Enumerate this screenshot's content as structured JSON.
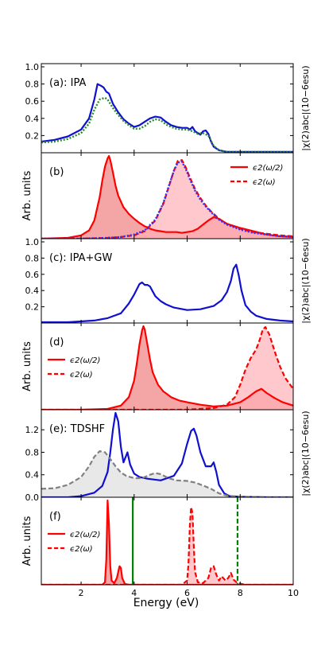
{
  "chart_data": {
    "type": "line",
    "xlabel": "Energy (eV)",
    "xlim": [
      0.5,
      10
    ],
    "xticks": [
      2,
      4,
      6,
      8,
      10
    ],
    "panels": [
      {
        "label": "(a): IPA",
        "ylabel_right": "|χ(2)abc|(10−6esu)",
        "ylim": [
          0,
          1.0
        ],
        "yticks": [
          0.2,
          0.4,
          0.6,
          0.8,
          1.0
        ],
        "series": [
          {
            "style": "solid",
            "color": "#1010d0",
            "fill": false,
            "x": [
              0.5,
              1.0,
              1.5,
              2.0,
              2.3,
              2.5,
              2.62,
              2.75,
              2.85,
              2.95,
              3.05,
              3.2,
              3.4,
              3.6,
              3.8,
              4.0,
              4.2,
              4.4,
              4.6,
              4.8,
              5.0,
              5.2,
              5.4,
              5.6,
              5.8,
              6.0,
              6.1,
              6.2,
              6.3,
              6.4,
              6.5,
              6.6,
              6.7,
              6.8,
              6.9,
              7.0,
              7.2,
              7.5,
              8.0,
              9.0,
              10.0
            ],
            "y": [
              0.13,
              0.15,
              0.19,
              0.27,
              0.4,
              0.62,
              0.8,
              0.78,
              0.76,
              0.71,
              0.69,
              0.57,
              0.47,
              0.39,
              0.34,
              0.3,
              0.32,
              0.36,
              0.4,
              0.42,
              0.41,
              0.36,
              0.32,
              0.3,
              0.29,
              0.29,
              0.27,
              0.3,
              0.25,
              0.23,
              0.21,
              0.25,
              0.26,
              0.22,
              0.13,
              0.07,
              0.03,
              0.01,
              0.01,
              0.01,
              0.01
            ]
          },
          {
            "style": "dotted",
            "color": "#2a8a2a",
            "fill": false,
            "x": [
              0.5,
              1.0,
              1.5,
              2.0,
              2.3,
              2.5,
              2.7,
              2.9,
              3.0,
              3.2,
              3.4,
              3.6,
              3.8,
              4.0,
              4.2,
              4.4,
              4.6,
              4.8,
              5.0,
              5.2,
              5.4,
              5.6,
              5.8,
              6.0,
              6.2,
              6.4,
              6.6,
              6.8,
              7.0,
              7.2,
              7.5,
              8.0,
              9.0,
              10.0
            ],
            "y": [
              0.12,
              0.13,
              0.16,
              0.23,
              0.34,
              0.5,
              0.62,
              0.64,
              0.62,
              0.52,
              0.44,
              0.37,
              0.32,
              0.28,
              0.28,
              0.31,
              0.36,
              0.39,
              0.38,
              0.33,
              0.3,
              0.28,
              0.27,
              0.27,
              0.25,
              0.22,
              0.23,
              0.2,
              0.08,
              0.03,
              0.01,
              0.01,
              0.01,
              0.01
            ]
          }
        ]
      },
      {
        "label": "(b)",
        "ylabel_left": "Arb. units",
        "ylim": [
          0,
          1.0
        ],
        "legend": [
          {
            "label": "ϵ2(ω/2)",
            "style": "solid"
          },
          {
            "label": "ϵ2(ω)",
            "style": "dashed"
          }
        ],
        "series": [
          {
            "style": "solid",
            "color": "#ff0000",
            "fill": true,
            "fill_color": "#f08080",
            "fill_opacity": 0.7,
            "x": [
              0.5,
              1.5,
              2.0,
              2.3,
              2.5,
              2.7,
              2.8,
              2.9,
              3.0,
              3.05,
              3.1,
              3.2,
              3.3,
              3.4,
              3.6,
              3.8,
              4.0,
              4.2,
              4.4,
              4.6,
              4.8,
              5.0,
              5.2,
              5.4,
              5.6,
              5.8,
              6.0,
              6.2,
              6.4,
              6.6,
              6.8,
              7.0,
              7.2,
              7.5,
              8.0,
              8.5,
              9.0,
              9.5,
              10.0
            ],
            "y": [
              0.0,
              0.01,
              0.04,
              0.1,
              0.22,
              0.5,
              0.7,
              0.87,
              0.97,
              1.0,
              0.95,
              0.8,
              0.64,
              0.52,
              0.38,
              0.3,
              0.24,
              0.19,
              0.15,
              0.12,
              0.1,
              0.09,
              0.08,
              0.08,
              0.08,
              0.07,
              0.08,
              0.09,
              0.12,
              0.17,
              0.22,
              0.26,
              0.24,
              0.18,
              0.13,
              0.09,
              0.05,
              0.03,
              0.02
            ]
          },
          {
            "style": "dashed",
            "color": "#ff0000",
            "fill": true,
            "fill_color": "#ffb0b8",
            "fill_opacity": 0.7,
            "x": [
              0.5,
              2.0,
              3.0,
              3.5,
              4.0,
              4.4,
              4.8,
              5.1,
              5.3,
              5.5,
              5.65,
              5.8,
              5.95,
              6.1,
              6.3,
              6.5,
              6.7,
              6.9,
              7.2,
              7.5,
              8.0,
              8.5,
              9.0,
              9.5,
              10.0
            ],
            "y": [
              0.0,
              0.0,
              0.01,
              0.02,
              0.04,
              0.09,
              0.22,
              0.42,
              0.62,
              0.82,
              0.94,
              0.95,
              0.86,
              0.74,
              0.6,
              0.49,
              0.4,
              0.33,
              0.24,
              0.18,
              0.12,
              0.08,
              0.06,
              0.04,
              0.03
            ]
          },
          {
            "style": "dotted",
            "color": "#3030ff",
            "fill": false,
            "x": [
              0.5,
              2.0,
              3.0,
              3.5,
              4.0,
              4.4,
              4.8,
              5.1,
              5.3,
              5.5,
              5.65,
              5.8,
              5.95,
              6.1,
              6.3,
              6.5,
              6.7,
              6.9,
              7.2,
              7.5,
              8.0,
              8.5,
              9.0,
              9.5,
              10.0
            ],
            "y": [
              0.0,
              0.0,
              0.01,
              0.02,
              0.05,
              0.1,
              0.23,
              0.43,
              0.63,
              0.82,
              0.92,
              0.93,
              0.84,
              0.72,
              0.58,
              0.47,
              0.39,
              0.32,
              0.23,
              0.17,
              0.11,
              0.07,
              0.05,
              0.03,
              0.02
            ]
          }
        ]
      },
      {
        "label": "(c): IPA+GW",
        "ylabel_right": "|χ(2)abc|(10−6esu)",
        "ylim": [
          0,
          1.0
        ],
        "yticks": [
          0.2,
          0.4,
          0.6,
          0.8,
          1.0
        ],
        "series": [
          {
            "style": "solid",
            "color": "#1010d0",
            "fill": false,
            "x": [
              0.5,
              1.5,
              2.5,
              3.0,
              3.5,
              3.8,
              4.0,
              4.2,
              4.3,
              4.4,
              4.5,
              4.6,
              4.7,
              4.8,
              5.0,
              5.2,
              5.5,
              6.0,
              6.5,
              7.0,
              7.3,
              7.5,
              7.65,
              7.75,
              7.85,
              7.95,
              8.05,
              8.2,
              8.4,
              8.6,
              9.0,
              9.5,
              10.0
            ],
            "y": [
              0.01,
              0.01,
              0.03,
              0.06,
              0.12,
              0.24,
              0.35,
              0.48,
              0.5,
              0.47,
              0.47,
              0.45,
              0.39,
              0.33,
              0.27,
              0.23,
              0.19,
              0.16,
              0.17,
              0.21,
              0.28,
              0.38,
              0.52,
              0.67,
              0.72,
              0.58,
              0.4,
              0.22,
              0.14,
              0.09,
              0.05,
              0.03,
              0.02
            ]
          }
        ]
      },
      {
        "label": "(d)",
        "ylabel_left": "Arb. units",
        "ylim": [
          0,
          1.0
        ],
        "legend": [
          {
            "label": "ϵ2(ω/2)",
            "style": "solid"
          },
          {
            "label": "ϵ2(ω)",
            "style": "dashed"
          }
        ],
        "series": [
          {
            "style": "solid",
            "color": "#ff0000",
            "fill": true,
            "fill_color": "#f08080",
            "fill_opacity": 0.7,
            "x": [
              0.5,
              2.0,
              3.0,
              3.5,
              3.8,
              4.0,
              4.1,
              4.2,
              4.3,
              4.35,
              4.4,
              4.5,
              4.6,
              4.7,
              4.9,
              5.1,
              5.4,
              5.7,
              6.0,
              6.5,
              7.0,
              7.5,
              8.0,
              8.3,
              8.6,
              8.8,
              9.0,
              9.3,
              9.6,
              10.0
            ],
            "y": [
              0.0,
              0.0,
              0.01,
              0.05,
              0.15,
              0.35,
              0.55,
              0.78,
              0.95,
              1.0,
              0.96,
              0.78,
              0.6,
              0.45,
              0.3,
              0.22,
              0.15,
              0.11,
              0.09,
              0.06,
              0.04,
              0.05,
              0.09,
              0.15,
              0.22,
              0.25,
              0.2,
              0.14,
              0.09,
              0.05
            ]
          },
          {
            "style": "dashed",
            "color": "#ff0000",
            "fill": true,
            "fill_color": "#ffb0b8",
            "fill_opacity": 0.7,
            "x": [
              0.5,
              4.0,
              6.0,
              7.0,
              7.5,
              7.8,
              8.0,
              8.2,
              8.4,
              8.6,
              8.75,
              8.85,
              8.95,
              9.1,
              9.3,
              9.5,
              9.7,
              10.0
            ],
            "y": [
              0.0,
              0.0,
              0.0,
              0.02,
              0.06,
              0.15,
              0.3,
              0.48,
              0.62,
              0.72,
              0.85,
              0.96,
              0.99,
              0.9,
              0.7,
              0.52,
              0.38,
              0.25
            ]
          }
        ]
      },
      {
        "label": "(e): TDSHF",
        "ylabel_right": "|χ(2)abc|(10−6esu)",
        "ylim": [
          0,
          1.5
        ],
        "yticks": [
          0.0,
          0.4,
          0.8,
          1.2
        ],
        "series": [
          {
            "style": "solid",
            "color": "#1010d0",
            "fill": false,
            "x": [
              0.5,
              1.5,
              2.0,
              2.5,
              2.8,
              3.0,
              3.1,
              3.2,
              3.3,
              3.4,
              3.5,
              3.6,
              3.75,
              3.85,
              4.0,
              4.2,
              4.5,
              5.0,
              5.5,
              5.8,
              6.0,
              6.15,
              6.25,
              6.35,
              6.5,
              6.7,
              6.9,
              7.0,
              7.1,
              7.2,
              7.4,
              7.6,
              8.0,
              9.0,
              10.0
            ],
            "y": [
              0.0,
              0.0,
              0.02,
              0.08,
              0.2,
              0.45,
              0.8,
              1.2,
              1.5,
              1.35,
              0.9,
              0.62,
              0.8,
              0.58,
              0.42,
              0.36,
              0.33,
              0.3,
              0.38,
              0.6,
              0.95,
              1.18,
              1.22,
              1.1,
              0.8,
              0.55,
              0.55,
              0.62,
              0.45,
              0.22,
              0.07,
              0.02,
              0.01,
              0.0,
              0.0
            ]
          },
          {
            "style": "dashed",
            "color": "#808080",
            "fill": true,
            "fill_color": "#d8d8d8",
            "fill_opacity": 0.6,
            "x": [
              0.5,
              1.0,
              1.5,
              2.0,
              2.3,
              2.5,
              2.7,
              2.9,
              3.1,
              3.3,
              3.5,
              3.7,
              4.0,
              4.3,
              4.6,
              4.8,
              5.0,
              5.3,
              5.6,
              6.0,
              6.3,
              6.6,
              6.9,
              7.2,
              7.5,
              8.0,
              9.0,
              10.0
            ],
            "y": [
              0.15,
              0.16,
              0.22,
              0.36,
              0.55,
              0.72,
              0.82,
              0.8,
              0.68,
              0.55,
              0.44,
              0.38,
              0.34,
              0.34,
              0.4,
              0.43,
              0.41,
              0.34,
              0.3,
              0.29,
              0.26,
              0.21,
              0.15,
              0.07,
              0.03,
              0.01,
              0.0,
              0.0
            ]
          }
        ]
      },
      {
        "label": "(f)",
        "ylabel_left": "Arb. units",
        "ylim": [
          0,
          1.0
        ],
        "legend": [
          {
            "label": "ϵ2(ω/2)",
            "style": "solid"
          },
          {
            "label": "ϵ2(ω)",
            "style": "dashed"
          }
        ],
        "vlines": [
          {
            "x": 3.95,
            "style": "solid",
            "color": "#008000"
          },
          {
            "x": 7.9,
            "style": "dashed",
            "color": "#008000"
          }
        ],
        "series": [
          {
            "style": "solid",
            "color": "#ff0000",
            "fill": true,
            "fill_color": "#f08080",
            "fill_opacity": 0.7,
            "x": [
              0.5,
              2.8,
              2.9,
              2.95,
              3.0,
              3.05,
              3.1,
              3.15,
              3.25,
              3.35,
              3.45,
              3.5,
              3.55,
              3.65,
              3.8,
              4.5,
              5.5,
              6.5,
              7.5,
              10.0
            ],
            "y": [
              0.0,
              0.0,
              0.03,
              0.3,
              1.0,
              0.72,
              0.22,
              0.05,
              0.02,
              0.08,
              0.22,
              0.2,
              0.08,
              0.01,
              0.0,
              0.0,
              0.0,
              0.0,
              0.0,
              0.0
            ]
          },
          {
            "style": "dashed",
            "color": "#ff0000",
            "fill": true,
            "fill_color": "#ffb0b8",
            "fill_opacity": 0.7,
            "x": [
              0.5,
              5.8,
              6.0,
              6.05,
              6.1,
              6.15,
              6.2,
              6.25,
              6.3,
              6.4,
              6.6,
              6.8,
              6.9,
              7.0,
              7.1,
              7.2,
              7.3,
              7.45,
              7.55,
              7.65,
              7.75,
              7.9,
              8.2,
              10.0
            ],
            "y": [
              0.0,
              0.0,
              0.05,
              0.25,
              0.7,
              0.92,
              0.85,
              0.45,
              0.15,
              0.03,
              0.02,
              0.08,
              0.2,
              0.22,
              0.12,
              0.05,
              0.1,
              0.05,
              0.08,
              0.14,
              0.06,
              0.02,
              0.0,
              0.0
            ]
          }
        ]
      }
    ]
  }
}
